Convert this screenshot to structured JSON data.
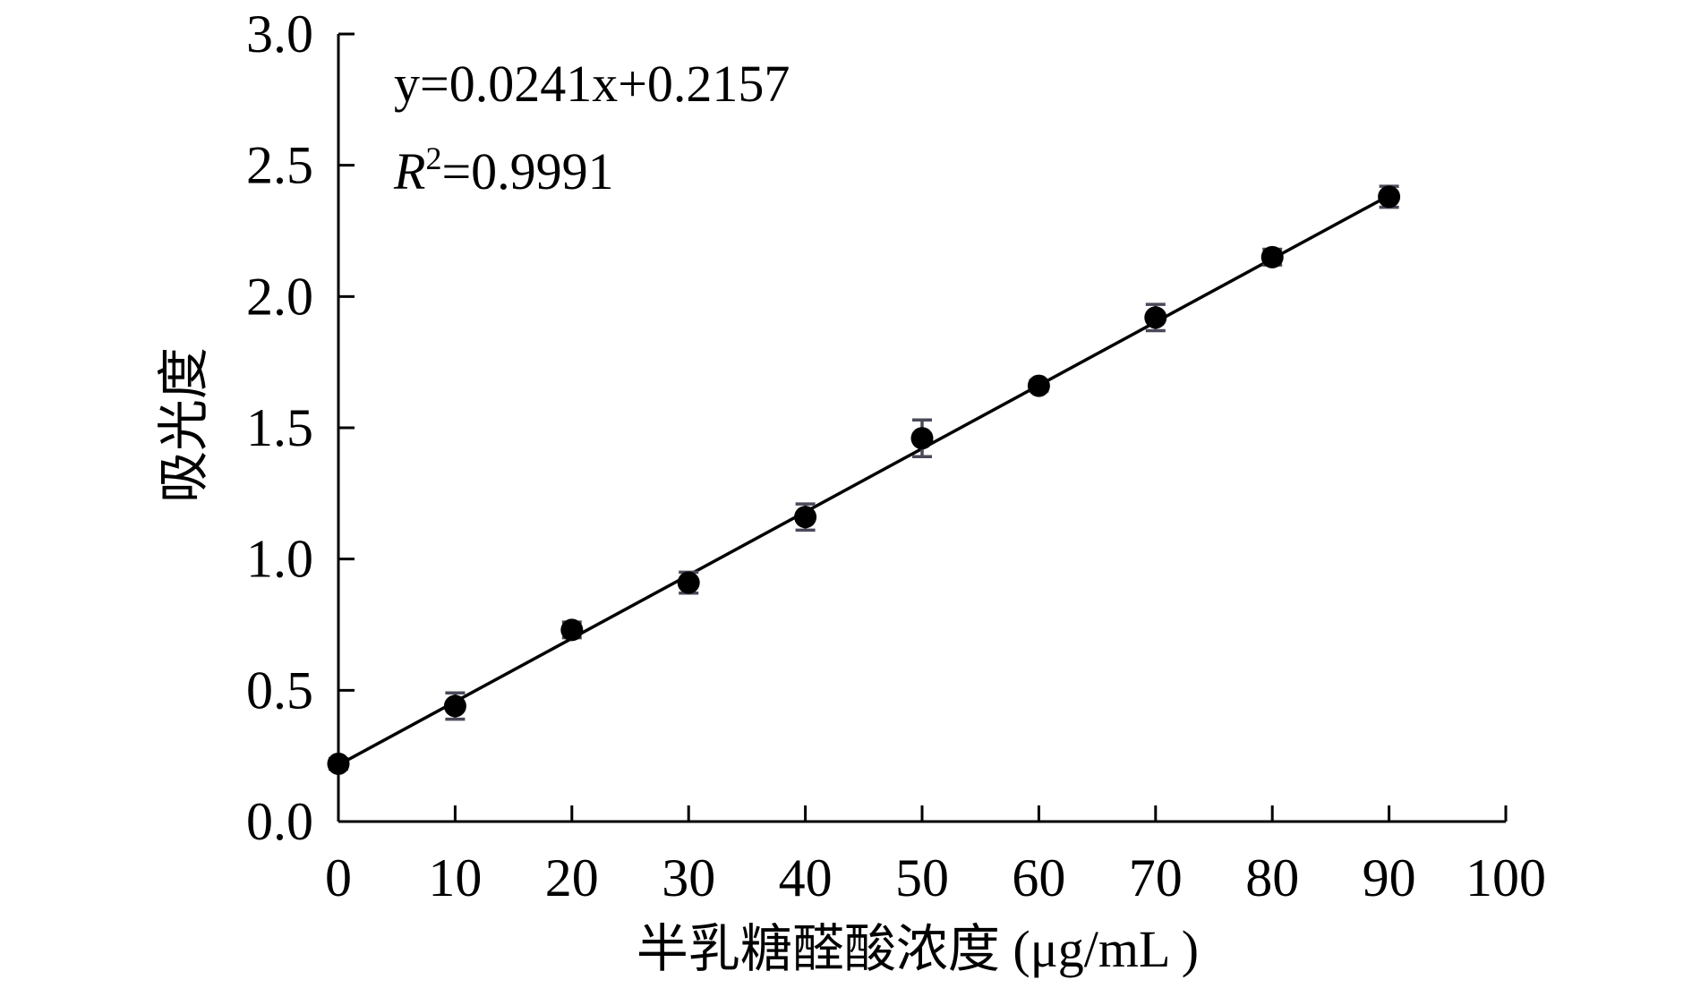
{
  "chart_data": {
    "type": "scatter",
    "xlabel": "半乳糖醛酸浓度 (μg/mL )",
    "ylabel": "吸光度",
    "xlim": [
      0,
      100
    ],
    "ylim": [
      0,
      3.0
    ],
    "x_ticks": [
      "0",
      "10",
      "20",
      "30",
      "40",
      "50",
      "60",
      "70",
      "80",
      "90",
      "100"
    ],
    "y_ticks": [
      "0.0",
      "0.5",
      "1.0",
      "1.5",
      "2.0",
      "2.5",
      "3.0"
    ],
    "grid": false,
    "points": [
      {
        "x": 0,
        "y": 0.22,
        "err": 0.02
      },
      {
        "x": 10,
        "y": 0.44,
        "err": 0.05
      },
      {
        "x": 20,
        "y": 0.73,
        "err": 0.03
      },
      {
        "x": 30,
        "y": 0.91,
        "err": 0.04
      },
      {
        "x": 40,
        "y": 1.16,
        "err": 0.05
      },
      {
        "x": 50,
        "y": 1.46,
        "err": 0.07
      },
      {
        "x": 60,
        "y": 1.66,
        "err": 0.02
      },
      {
        "x": 70,
        "y": 1.92,
        "err": 0.05
      },
      {
        "x": 80,
        "y": 2.15,
        "err": 0.03
      },
      {
        "x": 90,
        "y": 2.38,
        "err": 0.04
      }
    ],
    "fit": {
      "slope": 0.0241,
      "intercept": 0.2157,
      "x_range": [
        0,
        90
      ]
    },
    "annotations": {
      "equation": "y=0.0241x+0.2157",
      "r2_symbol": "R",
      "r2_sup": "2",
      "r2_value": "=0.9991"
    },
    "colors": {
      "points": "#000000",
      "error_bars": "#4a4a5a",
      "line": "#000000"
    }
  }
}
